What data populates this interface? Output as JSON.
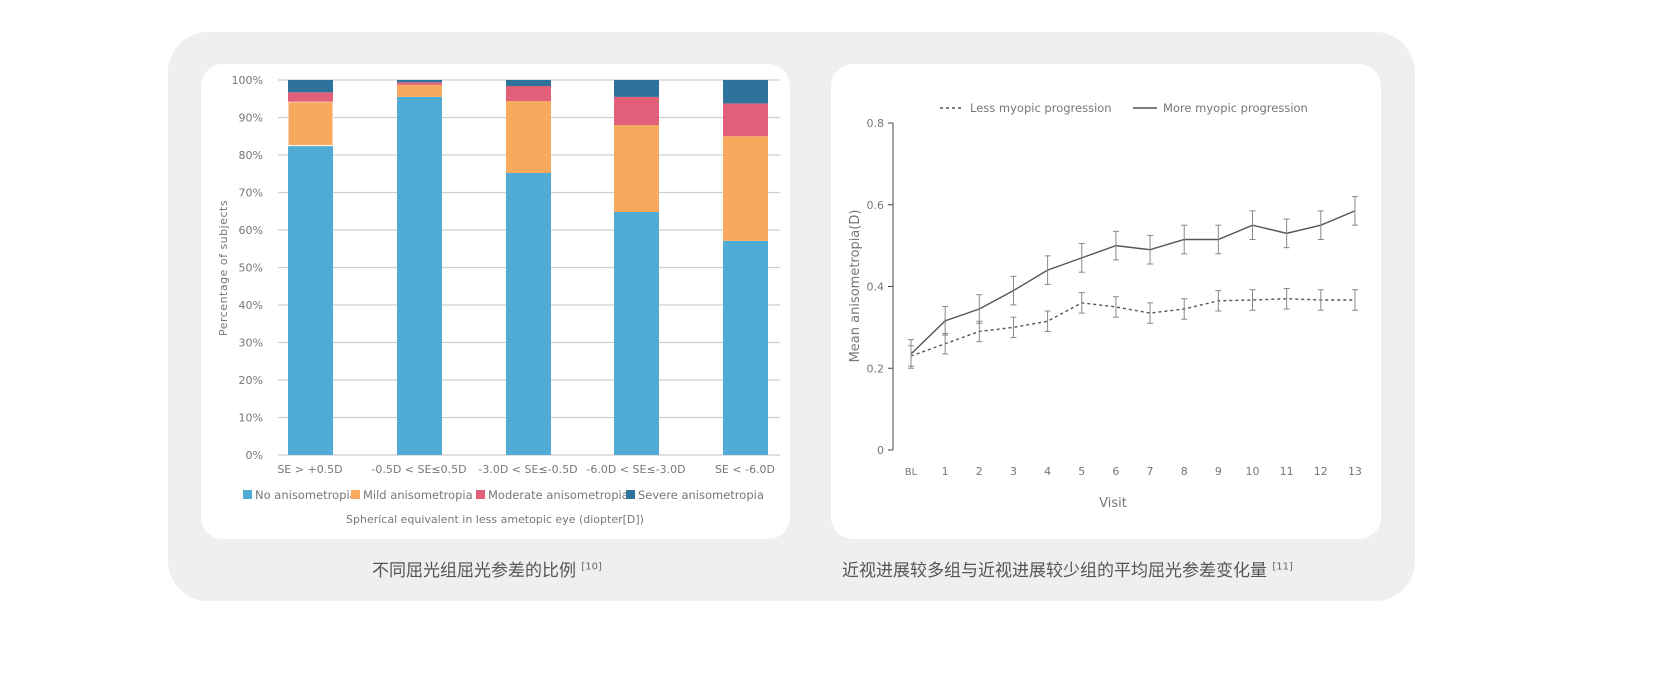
{
  "captions": {
    "left": "不同屈光组屈光参差的比例",
    "left_ref": "[10]",
    "right": "近视进展较多组与近视进展较少组的平均屈光参差变化量",
    "right_ref": "[11]"
  },
  "colors": {
    "no": "#50acd5",
    "mild": "#f7a95d",
    "moderate": "#e15f78",
    "severe": "#2e739c"
  },
  "chart_data": [
    {
      "type": "bar",
      "stacked": true,
      "categories": [
        "SE > +0.5D",
        "-0.5D < SE≤0.5D",
        "-3.0D < SE≤-0.5D",
        "-6.0D < SE≤-3.0D",
        "SE < -6.0D"
      ],
      "series": [
        {
          "name": "No anisometropia",
          "values": [
            82.5,
            95.5,
            75.2,
            64.8,
            57.1
          ]
        },
        {
          "name": "Mild anisometropia",
          "values": [
            11.7,
            3.2,
            19.2,
            23.2,
            27.9
          ]
        },
        {
          "name": "Moderate anisometropia",
          "values": [
            2.5,
            0.7,
            4.0,
            7.5,
            8.75
          ]
        },
        {
          "name": "Severe anisometropia",
          "values": [
            3.3,
            0.6,
            1.6,
            4.5,
            6.25
          ]
        }
      ],
      "ylabel": "Percentage of subjects",
      "xlabel": "Spherical equivalent in less ametopic eye (diopter[D])",
      "yticks": [
        "0%",
        "10%",
        "20%",
        "30%",
        "40%",
        "50%",
        "60%",
        "70%",
        "80%",
        "90%",
        "100%"
      ],
      "ylim": [
        0,
        100
      ],
      "legend": "bottom"
    },
    {
      "type": "line",
      "x": [
        "BL",
        "1",
        "2",
        "3",
        "4",
        "5",
        "6",
        "7",
        "8",
        "9",
        "10",
        "11",
        "12",
        "13"
      ],
      "series": [
        {
          "name": "Less myopic progression",
          "style": "dashed",
          "values": [
            0.23,
            0.26,
            0.29,
            0.3,
            0.315,
            0.36,
            0.35,
            0.335,
            0.345,
            0.365,
            0.367,
            0.37,
            0.367,
            0.367
          ],
          "error": 0.025
        },
        {
          "name": "More myopic progression",
          "style": "solid",
          "values": [
            0.235,
            0.316,
            0.345,
            0.39,
            0.44,
            0.47,
            0.5,
            0.49,
            0.515,
            0.515,
            0.55,
            0.53,
            0.55,
            0.585
          ],
          "error": 0.035
        }
      ],
      "ylabel": "Mean anisometropia(D)",
      "xlabel": "Visit",
      "yticks": [
        "0",
        "0.2",
        "0.4",
        "0.6",
        "0.8"
      ],
      "ylim": [
        0,
        0.8
      ],
      "legend": "top"
    }
  ]
}
